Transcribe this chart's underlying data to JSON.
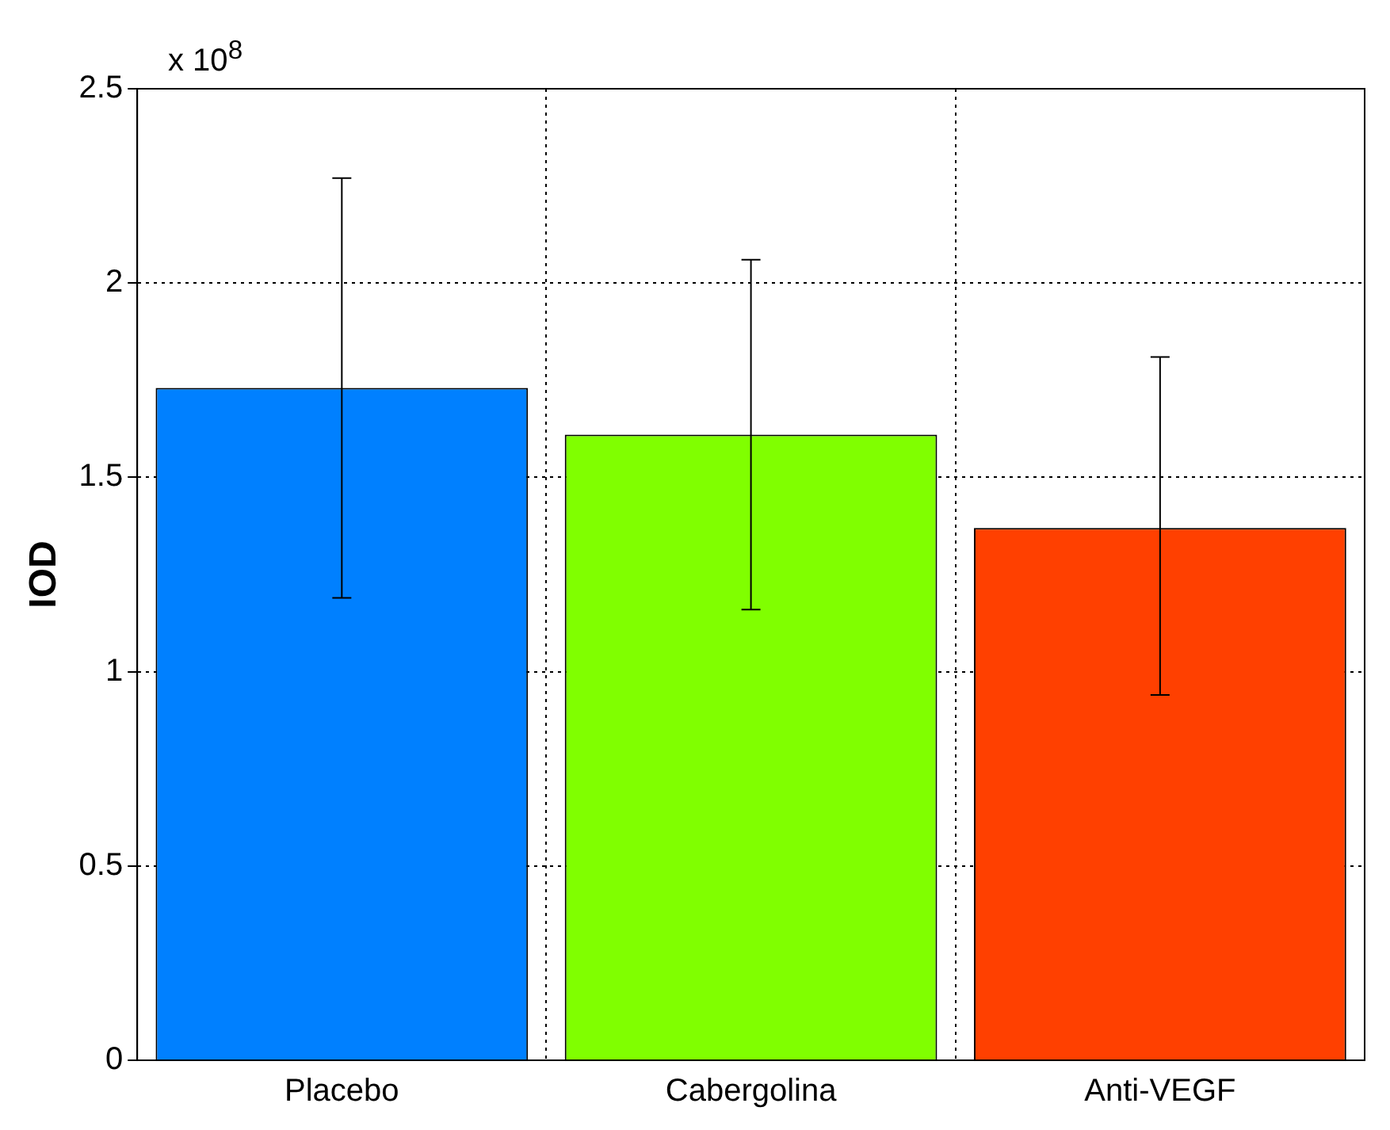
{
  "chart_data": {
    "type": "bar",
    "ylabel": "IOD",
    "annotations": [
      "x 10$^{8}$"
    ],
    "categories": [
      "Placebo",
      "Cabergolina",
      "Anti-VEGF"
    ],
    "values": [
      1.73,
      1.61,
      1.37
    ],
    "colors": [
      "#0080ff",
      "#80ff00",
      "#ff4000"
    ],
    "errors": [
      [
        1.19,
        2.27
      ],
      [
        1.16,
        2.06
      ],
      [
        0.94,
        1.81
      ]
    ],
    "ylim": [
      0,
      2.5
    ],
    "yticks": [
      0,
      0.5,
      1,
      1.5,
      2,
      2.5
    ],
    "grid": true
  }
}
